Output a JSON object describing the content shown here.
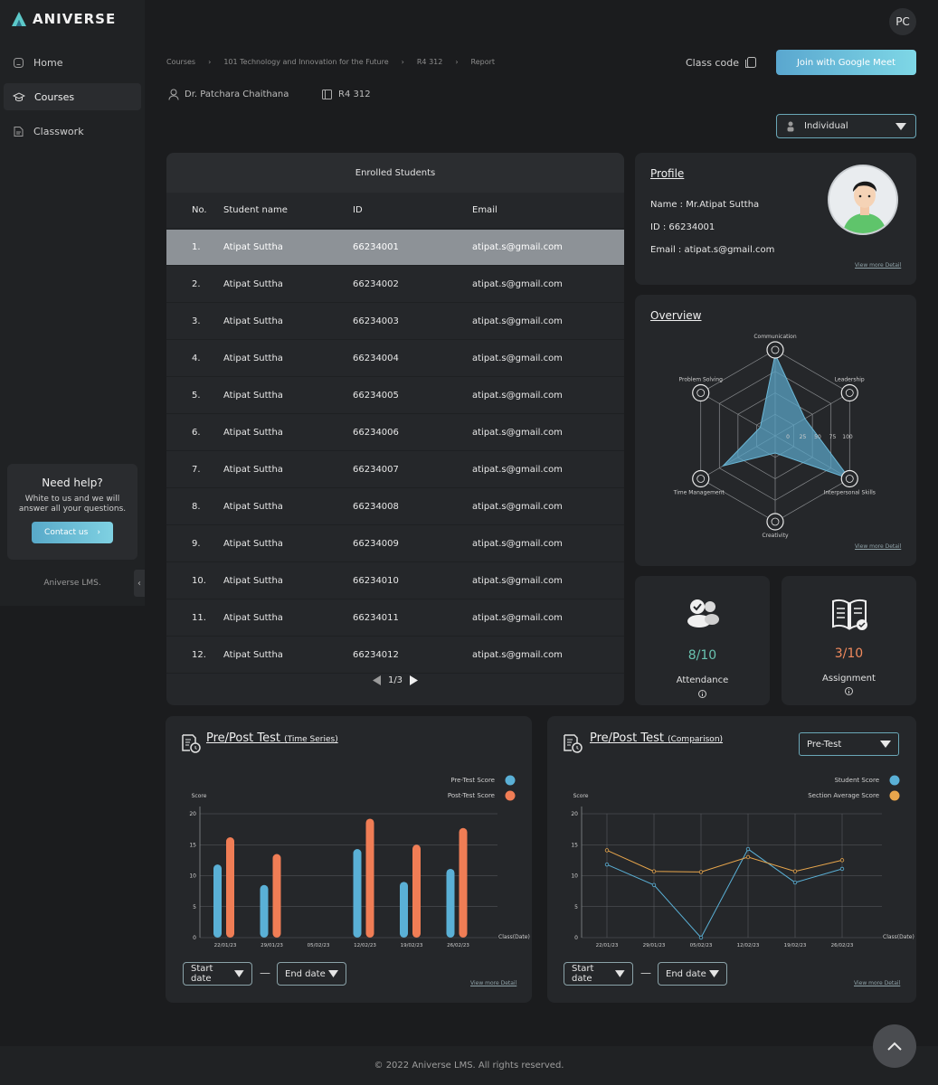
{
  "app": {
    "name": "ANIVERSE",
    "footer_brand": "Aniverse LMS.",
    "copyright": "© 2022 Aniverse LMS. All rights reserved."
  },
  "sidebar": {
    "items": [
      {
        "label": "Home",
        "icon": "home-icon"
      },
      {
        "label": "Courses",
        "icon": "courses-icon"
      },
      {
        "label": "Classwork",
        "icon": "classwork-icon"
      }
    ],
    "help": {
      "title": "Need help?",
      "text": "White to us and we will answer all your questions.",
      "button": "Contact us"
    }
  },
  "header": {
    "avatar": "PC",
    "breadcrumb": [
      "Courses",
      "101 Technology and Innovation for the Future",
      "R4 312",
      "Report"
    ],
    "class_code_label": "Class code",
    "meet_button": "Join with Google Meet",
    "teacher": "Dr. Patchara Chaithana",
    "room": "R4 312",
    "view_select": "Individual"
  },
  "students": {
    "title": "Enrolled Students",
    "columns": [
      "No.",
      "Student name",
      "ID",
      "Email"
    ],
    "rows": [
      [
        "1.",
        "Atipat Suttha",
        "66234001",
        "atipat.s@gmail.com"
      ],
      [
        "2.",
        "Atipat Suttha",
        "66234002",
        "atipat.s@gmail.com"
      ],
      [
        "3.",
        "Atipat Suttha",
        "66234003",
        "atipat.s@gmail.com"
      ],
      [
        "4.",
        "Atipat Suttha",
        "66234004",
        "atipat.s@gmail.com"
      ],
      [
        "5.",
        "Atipat Suttha",
        "66234005",
        "atipat.s@gmail.com"
      ],
      [
        "6.",
        "Atipat Suttha",
        "66234006",
        "atipat.s@gmail.com"
      ],
      [
        "7.",
        "Atipat Suttha",
        "66234007",
        "atipat.s@gmail.com"
      ],
      [
        "8.",
        "Atipat Suttha",
        "66234008",
        "atipat.s@gmail.com"
      ],
      [
        "9.",
        "Atipat Suttha",
        "66234009",
        "atipat.s@gmail.com"
      ],
      [
        "10.",
        "Atipat Suttha",
        "66234010",
        "atipat.s@gmail.com"
      ],
      [
        "11.",
        "Atipat Suttha",
        "66234011",
        "atipat.s@gmail.com"
      ],
      [
        "12.",
        "Atipat Suttha",
        "66234012",
        "atipat.s@gmail.com"
      ]
    ],
    "selected_index": 0,
    "page": "1/3"
  },
  "profile": {
    "title": "Profile",
    "name": "Name : Mr.Atipat  Suttha",
    "id": "ID : 66234001",
    "email": "Email : atipat.s@gmail.com",
    "view_more": "View more Detail"
  },
  "overview": {
    "title": "Overview",
    "view_more": "View more Detail",
    "axes": [
      "Communication",
      "Leadership",
      "Interpersonal Skills",
      "Creativity",
      "Time Management",
      "Problem Solving"
    ],
    "values": [
      95,
      40,
      100,
      20,
      70,
      20
    ],
    "ticks": [
      "0",
      "25",
      "50",
      "75",
      "100"
    ]
  },
  "attendance": {
    "value": "8/10",
    "label": "Attendance",
    "color": "#69c3b0"
  },
  "assignment": {
    "value": "3/10",
    "label": "Assignment",
    "color": "#f08a5d"
  },
  "charts": {
    "time_series": {
      "title": "Pre/Post Test",
      "subtitle": "(Time Series)",
      "start": "Start date",
      "end": "End date",
      "view_more": "View more Detail"
    },
    "comparison": {
      "title": "Pre/Post Test",
      "subtitle": "(Comparison)",
      "select": "Pre-Test",
      "start": "Start date",
      "end": "End date",
      "view_more": "View more Detail"
    }
  },
  "chart_data": [
    {
      "type": "bar",
      "ylabel": "Score",
      "xlabel": "Class(Date)",
      "ylim": [
        0,
        20
      ],
      "yticks": [
        "0",
        "5",
        "10",
        "15",
        "20"
      ],
      "categories": [
        "22/01/23",
        "29/01/23",
        "05/02/23",
        "12/02/23",
        "19/02/23",
        "26/02/23"
      ],
      "series": [
        {
          "name": "Pre-Test Score",
          "color": "#5ab0d6",
          "values": [
            11.8,
            8.5,
            0,
            14.3,
            9,
            11.1
          ]
        },
        {
          "name": "Post-Test Score",
          "color": "#f07d55",
          "values": [
            16.2,
            13.5,
            0,
            19.2,
            15,
            17.7
          ]
        }
      ],
      "legend": "top-right",
      "grid": true
    },
    {
      "type": "line",
      "ylabel": "Score",
      "xlabel": "Class(Date)",
      "ylim": [
        0,
        20
      ],
      "yticks": [
        "0",
        "5",
        "10",
        "15",
        "20"
      ],
      "categories": [
        "22/01/23",
        "29/01/23",
        "05/02/23",
        "12/02/23",
        "19/02/23",
        "26/02/23"
      ],
      "series": [
        {
          "name": "Student Score",
          "color": "#5ab0d6",
          "values": [
            11.8,
            8.5,
            0,
            14.3,
            8.9,
            11.1
          ]
        },
        {
          "name": "Section Average Score",
          "color": "#e8a64c",
          "values": [
            14.1,
            10.7,
            10.6,
            13,
            10.7,
            12.5
          ]
        }
      ],
      "legend": "top-right",
      "grid": true
    }
  ]
}
